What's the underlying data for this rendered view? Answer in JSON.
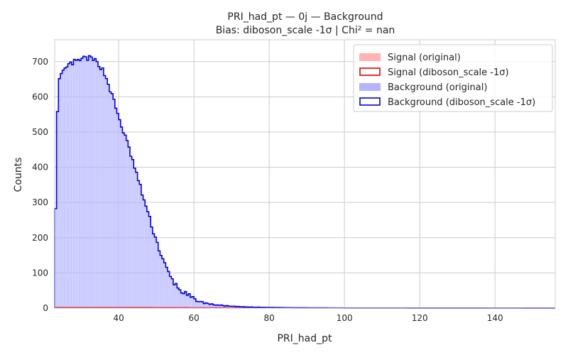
{
  "chart_data": {
    "type": "histogram",
    "title": "PRI_had_pt — 0j — Background",
    "subtitle": "Bias: diboson_scale -1σ | Chi² = nan",
    "xlabel": "PRI_had_pt",
    "ylabel": "Counts",
    "xlim": [
      23,
      156
    ],
    "ylim": [
      0,
      762
    ],
    "xticks": [
      40,
      60,
      80,
      100,
      120,
      140
    ],
    "yticks": [
      0,
      100,
      200,
      300,
      400,
      500,
      600,
      700
    ],
    "grid": true,
    "legend_position": "top-right",
    "bin_width": 0.5,
    "colors": {
      "signal_original": "#ffb3b3",
      "signal_biased": "#e00000",
      "background_original": "#b4b4ff",
      "background_biased": "#0000e0"
    },
    "legend": [
      {
        "label": "Signal (original)",
        "style": "filled",
        "color": "#ffb3b3"
      },
      {
        "label": "Signal (diboson_scale -1σ)",
        "style": "outline",
        "color": "#e00000"
      },
      {
        "label": "Background (original)",
        "style": "filled",
        "color": "#b4b4ff"
      },
      {
        "label": "Background (diboson_scale -1σ)",
        "style": "outline",
        "color": "#0000e0"
      }
    ],
    "background_profile": [
      [
        23,
        255
      ],
      [
        23.5,
        410
      ],
      [
        24,
        640
      ],
      [
        25,
        665
      ],
      [
        26,
        680
      ],
      [
        27,
        692
      ],
      [
        28,
        698
      ],
      [
        29,
        700
      ],
      [
        30,
        705
      ],
      [
        31,
        710
      ],
      [
        32,
        710
      ],
      [
        33,
        706
      ],
      [
        34,
        700
      ],
      [
        35,
        690
      ],
      [
        36,
        672
      ],
      [
        37,
        645
      ],
      [
        38,
        612
      ],
      [
        39,
        578
      ],
      [
        40,
        542
      ],
      [
        41,
        510
      ],
      [
        42,
        478
      ],
      [
        43,
        445
      ],
      [
        44,
        408
      ],
      [
        45,
        372
      ],
      [
        46,
        335
      ],
      [
        47,
        298
      ],
      [
        48,
        262
      ],
      [
        49,
        226
      ],
      [
        50,
        192
      ],
      [
        51,
        160
      ],
      [
        52,
        130
      ],
      [
        53,
        105
      ],
      [
        54,
        84
      ],
      [
        55,
        68
      ],
      [
        56,
        55
      ],
      [
        57,
        46
      ],
      [
        58,
        38
      ],
      [
        59,
        31
      ],
      [
        60,
        25
      ],
      [
        62,
        17
      ],
      [
        64,
        12
      ],
      [
        66,
        9
      ],
      [
        68,
        7
      ],
      [
        70,
        5
      ],
      [
        75,
        3
      ],
      [
        80,
        2
      ],
      [
        90,
        1
      ],
      [
        100,
        0.5
      ],
      [
        120,
        0.2
      ],
      [
        156,
        0.1
      ]
    ],
    "signal_profile": [
      [
        23,
        1.5
      ],
      [
        40,
        1.5
      ],
      [
        60,
        1
      ],
      [
        80,
        0.5
      ],
      [
        156,
        0.2
      ]
    ]
  }
}
